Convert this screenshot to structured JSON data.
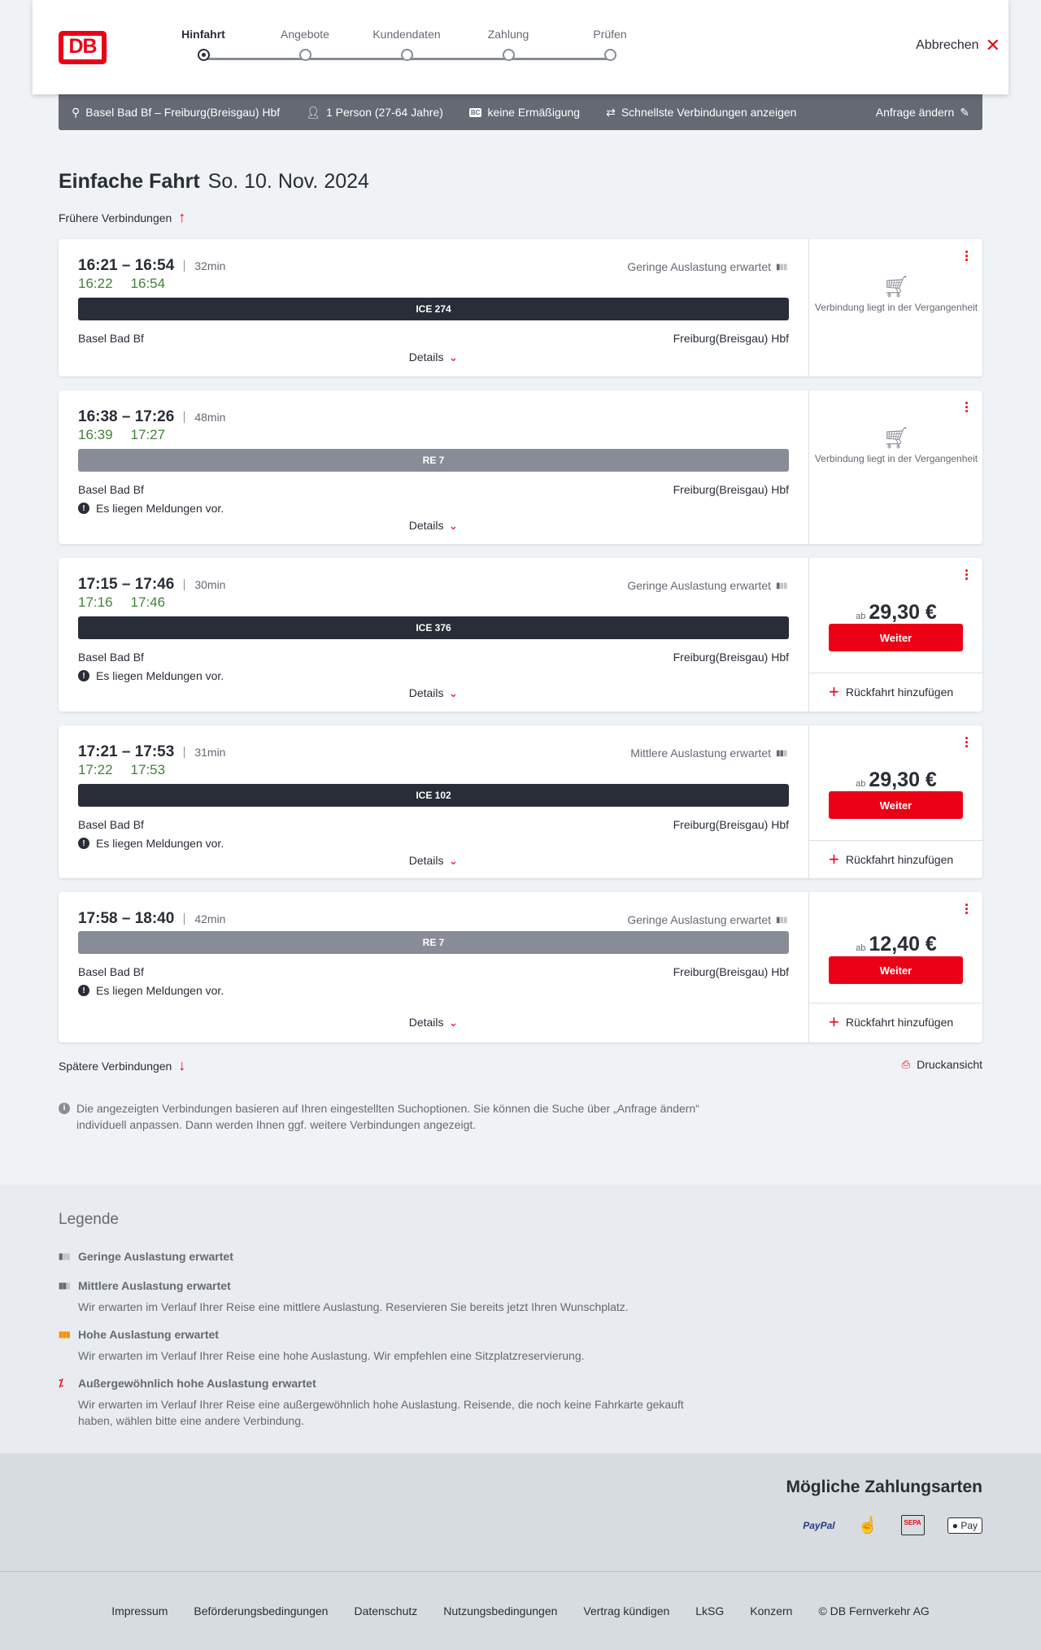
{
  "header": {
    "logo": "DB",
    "steps": [
      "Hinfahrt",
      "Angebote",
      "Kundendaten",
      "Zahlung",
      "Prüfen"
    ],
    "active_step": 0,
    "cancel": "Abbrechen"
  },
  "search_bar": {
    "route": "Basel Bad Bf – Freiburg(Breisgau) Hbf",
    "passengers": "1 Person (27-64 Jahre)",
    "discount_badge": "BC",
    "discount": "keine Ermäßigung",
    "fastest": "Schnellste Verbindungen anzeigen",
    "edit": "Anfrage ändern"
  },
  "title": {
    "type": "Einfache Fahrt",
    "date": "So. 10. Nov. 2024"
  },
  "earlier": "Frühere Verbindungen",
  "later": "Spätere Verbindungen",
  "print": "Druckansicht",
  "connections": [
    {
      "times": "16:21 – 16:54",
      "duration": "32min",
      "occupancy": "Geringe Auslastung erwartet",
      "rt_dep": "16:22",
      "rt_arr": "16:54",
      "train": "ICE 274",
      "train_color": "#282d37",
      "from": "Basel Bad Bf",
      "to": "Freiburg(Breisgau) Hbf",
      "message": "",
      "details": "Details",
      "past": "Verbindung liegt in der Vergangenheit"
    },
    {
      "times": "16:38 – 17:26",
      "duration": "48min",
      "occupancy": "",
      "rt_dep": "16:39",
      "rt_arr": "17:27",
      "train": "RE 7",
      "train_color": "#878c96",
      "from": "Basel Bad Bf",
      "to": "Freiburg(Breisgau) Hbf",
      "message": "Es liegen Meldungen vor.",
      "details": "Details",
      "past": "Verbindung liegt in der Vergangenheit"
    },
    {
      "times": "17:15 – 17:46",
      "duration": "30min",
      "occupancy": "Geringe Auslastung erwartet",
      "rt_dep": "17:16",
      "rt_arr": "17:46",
      "train": "ICE 376",
      "train_color": "#282d37",
      "from": "Basel Bad Bf",
      "to": "Freiburg(Breisgau) Hbf",
      "message": "Es liegen Meldungen vor.",
      "details": "Details",
      "price_prefix": "ab",
      "price": "29,30 €",
      "button": "Weiter",
      "return": "Rückfahrt hinzufügen"
    },
    {
      "times": "17:21 – 17:53",
      "duration": "31min",
      "occupancy": "Mittlere Auslastung erwartet",
      "rt_dep": "17:22",
      "rt_arr": "17:53",
      "train": "ICE 102",
      "train_color": "#282d37",
      "from": "Basel Bad Bf",
      "to": "Freiburg(Breisgau) Hbf",
      "message": "Es liegen Meldungen vor.",
      "details": "Details",
      "price_prefix": "ab",
      "price": "29,30 €",
      "button": "Weiter",
      "return": "Rückfahrt hinzufügen"
    },
    {
      "times": "17:58 – 18:40",
      "duration": "42min",
      "occupancy": "Geringe Auslastung erwartet",
      "rt_dep": "",
      "rt_arr": "",
      "train": "RE 7",
      "train_color": "#878c96",
      "from": "Basel Bad Bf",
      "to": "Freiburg(Breisgau) Hbf",
      "message": "Es liegen Meldungen vor.",
      "details": "Details",
      "price_prefix": "ab",
      "price": "12,40 €",
      "button": "Weiter",
      "return": "Rückfahrt hinzufügen"
    }
  ],
  "info": "Die angezeigten Verbindungen basieren auf Ihren eingestellten Suchoptionen. Sie können die Suche über „Anfrage ändern“ individuell anpassen. Dann werden Ihnen ggf. weitere Verbindungen angezeigt.",
  "legend": {
    "title": "Legende",
    "items": [
      {
        "title": "Geringe Auslastung erwartet",
        "desc": "",
        "color": "#646973"
      },
      {
        "title": "Mittlere Auslastung erwartet",
        "desc": "Wir erwarten im Verlauf Ihrer Reise eine mittlere Auslastung. Reservieren Sie bereits jetzt Ihren Wunschplatz.",
        "color": "#646973"
      },
      {
        "title": "Hohe Auslastung erwartet",
        "desc": "Wir erwarten im Verlauf Ihrer Reise eine hohe Auslastung. Wir empfehlen eine Sitzplatzreservierung.",
        "color": "#f39200"
      },
      {
        "title": "Außergewöhnlich hohe Auslastung erwartet",
        "desc": "Wir erwarten im Verlauf Ihrer Reise eine außergewöhnlich hohe Auslastung. Reisende, die noch keine Fahrkarte gekauft haben, wählen bitte eine andere Verbindung.",
        "color": "#ec0016"
      }
    ]
  },
  "payment": {
    "title": "Mögliche Zahlungsarten",
    "methods": [
      "PayPal",
      "SEPA",
      "Pay"
    ]
  },
  "footer": [
    "Impressum",
    "Beförderungsbedingungen",
    "Datenschutz",
    "Nutzungsbedingungen",
    "Vertrag kündigen",
    "LkSG",
    "Konzern",
    "© DB Fernverkehr AG"
  ]
}
